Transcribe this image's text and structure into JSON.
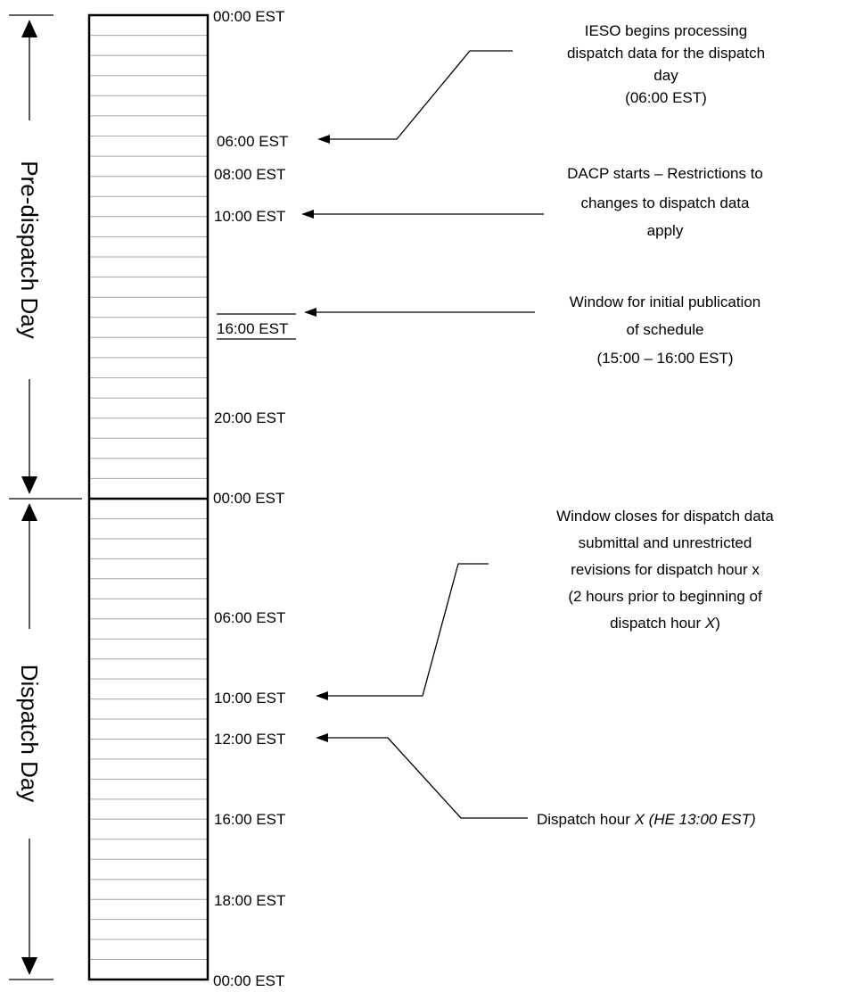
{
  "colors": {
    "line": "#000000",
    "grid": "#a6a6a6",
    "background": "#ffffff"
  },
  "sections": {
    "predispatch": "Pre-dispatch Day",
    "dispatch": "Dispatch Day"
  },
  "time_labels": [
    "00:00 EST",
    "06:00 EST",
    "08:00 EST",
    "10:00 EST",
    "16:00 EST",
    "20:00 EST",
    "00:00 EST",
    "06:00 EST",
    "10:00 EST",
    "12:00 EST",
    "16:00 EST",
    "18:00 EST",
    "00:00 EST"
  ],
  "annotations": {
    "ieso": [
      "IESO begins processing",
      "dispatch data for the dispatch",
      "day",
      "(06:00 EST)"
    ],
    "dacp": [
      "DACP starts – Restrictions to",
      "changes to dispatch data",
      "apply"
    ],
    "publication": [
      "Window for initial publication",
      "of schedule",
      "(15:00 – 16:00 EST)"
    ],
    "window_close": {
      "lines": [
        "Window closes for dispatch data",
        "submittal and unrestricted",
        "revisions for dispatch hour x",
        "(2 hours prior to beginning of"
      ],
      "last_prefix": "dispatch hour ",
      "last_var": "X",
      "last_suffix": ")"
    },
    "dispatch_hour": {
      "prefix": "Dispatch hour ",
      "italic": "X (HE 13:00 EST)"
    }
  }
}
